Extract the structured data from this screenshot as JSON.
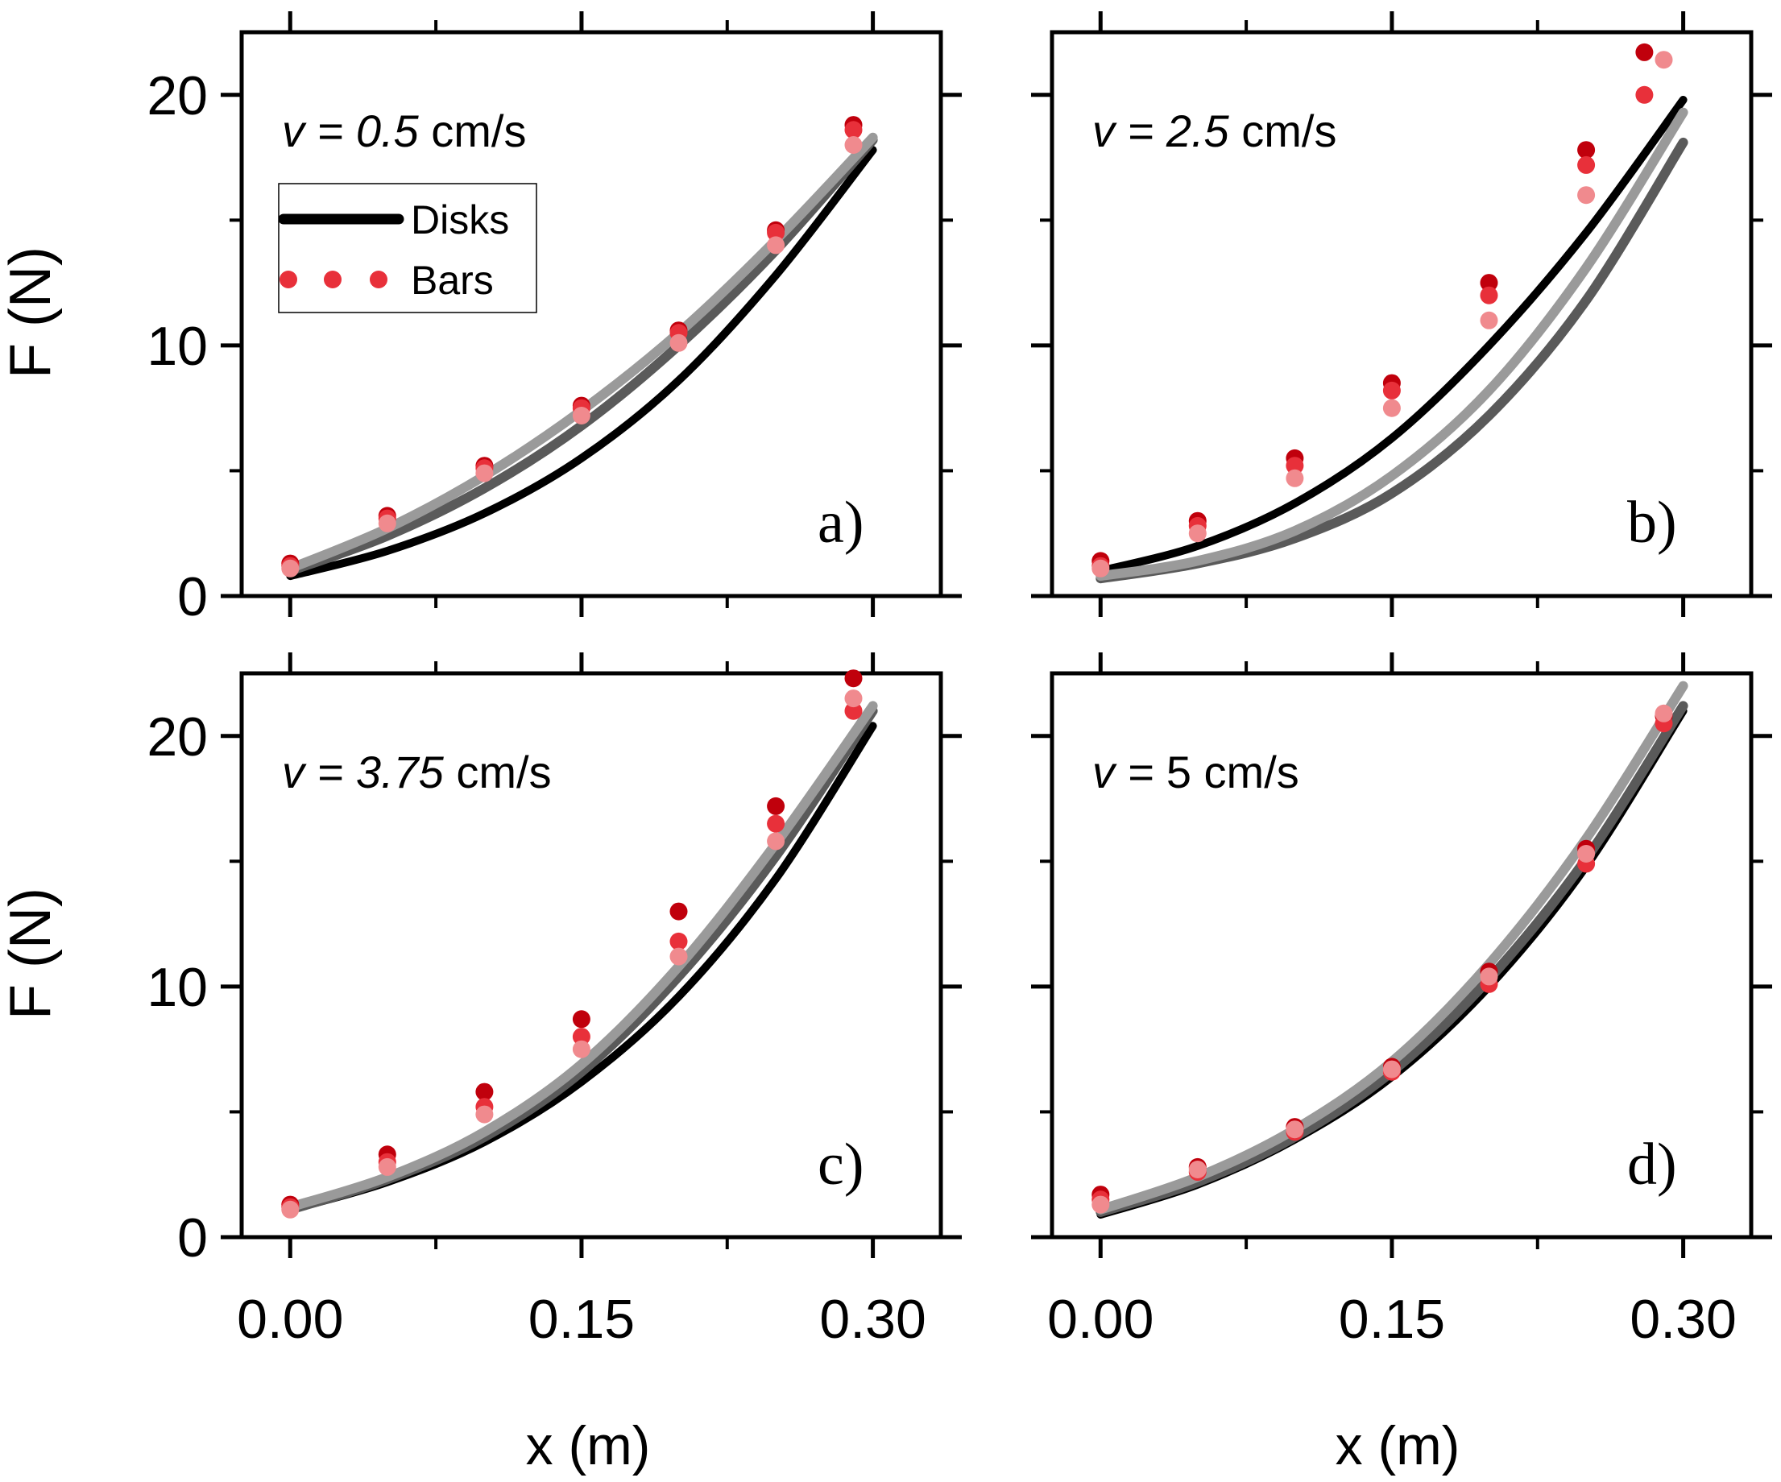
{
  "figure": {
    "colors": {
      "axis": "#000000",
      "disk_dark": "#000000",
      "disk_mid": "#5a5a5a",
      "disk_light": "#9a9a9a",
      "bar_dark": "#c0000c",
      "bar_mid": "#e8303a",
      "bar_light": "#f08a8e"
    }
  },
  "chart_data": [
    {
      "panel": "a)",
      "type": "scatter",
      "velocity": {
        "prefix": "v = ",
        "value": "0.5",
        "unit": " cm/s"
      },
      "xlabel": "x (m)",
      "ylabel": "F (N)",
      "xlim": [
        -0.025,
        0.335
      ],
      "ylim": [
        0,
        22.5
      ],
      "xticks": [
        "0.00",
        "0.15",
        "0.30"
      ],
      "yticks": [
        "0",
        "10",
        "20"
      ],
      "legend": {
        "position": "top-left",
        "entries": [
          {
            "label": "Disks",
            "style": "line"
          },
          {
            "label": "Bars",
            "style": "dots"
          }
        ]
      },
      "series": [
        {
          "name": "Disks 1",
          "kind": "line",
          "color": "#000000",
          "x": [
            0,
            0.05,
            0.1,
            0.15,
            0.2,
            0.25,
            0.3
          ],
          "y": [
            0.8,
            1.8,
            3.3,
            5.5,
            8.6,
            12.8,
            17.8
          ]
        },
        {
          "name": "Disks 2",
          "kind": "line",
          "color": "#5a5a5a",
          "x": [
            0,
            0.05,
            0.1,
            0.15,
            0.2,
            0.25,
            0.3
          ],
          "y": [
            1.0,
            2.4,
            4.3,
            6.8,
            10.0,
            13.8,
            18.2
          ]
        },
        {
          "name": "Disks 3",
          "kind": "line",
          "color": "#9a9a9a",
          "x": [
            0,
            0.05,
            0.1,
            0.15,
            0.2,
            0.25,
            0.3
          ],
          "y": [
            1.1,
            2.7,
            4.8,
            7.4,
            10.5,
            14.2,
            18.3
          ]
        },
        {
          "name": "Bars 1",
          "kind": "dots",
          "color": "#c0000c",
          "x": [
            0,
            0.05,
            0.1,
            0.15,
            0.2,
            0.25,
            0.29
          ],
          "y": [
            1.3,
            3.2,
            5.2,
            7.6,
            10.6,
            14.6,
            18.8
          ]
        },
        {
          "name": "Bars 2",
          "kind": "dots",
          "color": "#e8303a",
          "x": [
            0,
            0.05,
            0.1,
            0.15,
            0.2,
            0.25,
            0.29
          ],
          "y": [
            1.2,
            3.1,
            5.1,
            7.5,
            10.5,
            14.5,
            18.6
          ]
        },
        {
          "name": "Bars 3",
          "kind": "dots",
          "color": "#f08a8e",
          "x": [
            0,
            0.05,
            0.1,
            0.15,
            0.2,
            0.25,
            0.29
          ],
          "y": [
            1.1,
            2.9,
            4.9,
            7.2,
            10.1,
            14.0,
            18.0
          ]
        }
      ]
    },
    {
      "panel": "b)",
      "type": "scatter",
      "velocity": {
        "prefix": "v = ",
        "value": "2.5",
        "unit": " cm/s"
      },
      "xlabel": "x (m)",
      "ylabel": "F (N)",
      "xlim": [
        -0.025,
        0.335
      ],
      "ylim": [
        0,
        22.5
      ],
      "xticks": [
        "0.00",
        "0.15",
        "0.30"
      ],
      "yticks": [
        "0",
        "10",
        "20"
      ],
      "series": [
        {
          "name": "Disks 1",
          "kind": "line",
          "color": "#000000",
          "x": [
            0,
            0.05,
            0.1,
            0.15,
            0.2,
            0.25,
            0.3
          ],
          "y": [
            1.0,
            2.0,
            3.7,
            6.3,
            10.0,
            14.5,
            19.8
          ]
        },
        {
          "name": "Disks 2",
          "kind": "line",
          "color": "#5a5a5a",
          "x": [
            0,
            0.05,
            0.1,
            0.15,
            0.2,
            0.25,
            0.3
          ],
          "y": [
            0.7,
            1.3,
            2.3,
            4.1,
            7.2,
            11.8,
            18.1
          ]
        },
        {
          "name": "Disks 3",
          "kind": "line",
          "color": "#9a9a9a",
          "x": [
            0,
            0.05,
            0.1,
            0.15,
            0.2,
            0.25,
            0.3
          ],
          "y": [
            0.8,
            1.4,
            2.6,
            4.8,
            8.2,
            13.1,
            19.3
          ]
        },
        {
          "name": "Bars 1",
          "kind": "dots",
          "color": "#c0000c",
          "x": [
            0,
            0.05,
            0.1,
            0.15,
            0.2,
            0.25,
            0.28
          ],
          "y": [
            1.4,
            3.0,
            5.5,
            8.5,
            12.5,
            17.8,
            21.7
          ]
        },
        {
          "name": "Bars 2",
          "kind": "dots",
          "color": "#e8303a",
          "x": [
            0,
            0.05,
            0.1,
            0.15,
            0.2,
            0.25,
            0.28
          ],
          "y": [
            1.2,
            2.8,
            5.2,
            8.2,
            12.0,
            17.2,
            20.0
          ]
        },
        {
          "name": "Bars 3",
          "kind": "dots",
          "color": "#f08a8e",
          "x": [
            0,
            0.05,
            0.1,
            0.15,
            0.2,
            0.25,
            0.29
          ],
          "y": [
            1.1,
            2.5,
            4.7,
            7.5,
            11.0,
            16.0,
            21.4
          ]
        }
      ]
    },
    {
      "panel": "c)",
      "type": "scatter",
      "velocity": {
        "prefix": "v = ",
        "value": "3.75",
        "unit": " cm/s"
      },
      "xlabel": "x (m)",
      "ylabel": "F (N)",
      "xlim": [
        -0.025,
        0.335
      ],
      "ylim": [
        0,
        22.5
      ],
      "xticks": [
        "0.00",
        "0.15",
        "0.30"
      ],
      "yticks": [
        "0",
        "10",
        "20"
      ],
      "series": [
        {
          "name": "Disks 1",
          "kind": "line",
          "color": "#000000",
          "x": [
            0,
            0.05,
            0.1,
            0.15,
            0.2,
            0.25,
            0.3
          ],
          "y": [
            1.1,
            2.2,
            3.8,
            6.2,
            9.6,
            14.3,
            20.4
          ]
        },
        {
          "name": "Disks 2",
          "kind": "line",
          "color": "#5a5a5a",
          "x": [
            0,
            0.05,
            0.1,
            0.15,
            0.2,
            0.25,
            0.3
          ],
          "y": [
            1.1,
            2.3,
            4.0,
            6.6,
            10.4,
            15.2,
            21.0
          ]
        },
        {
          "name": "Disks 3",
          "kind": "line",
          "color": "#9a9a9a",
          "x": [
            0,
            0.05,
            0.1,
            0.15,
            0.2,
            0.25,
            0.3
          ],
          "y": [
            1.2,
            2.4,
            4.2,
            6.9,
            10.8,
            15.7,
            21.2
          ]
        },
        {
          "name": "Bars 1",
          "kind": "dots",
          "color": "#c0000c",
          "x": [
            0,
            0.05,
            0.1,
            0.15,
            0.2,
            0.25,
            0.29
          ],
          "y": [
            1.3,
            3.3,
            5.8,
            8.7,
            13.0,
            17.2,
            22.3
          ]
        },
        {
          "name": "Bars 2",
          "kind": "dots",
          "color": "#e8303a",
          "x": [
            0,
            0.05,
            0.1,
            0.15,
            0.2,
            0.25,
            0.29
          ],
          "y": [
            1.2,
            3.0,
            5.2,
            8.0,
            11.8,
            16.5,
            21.0
          ]
        },
        {
          "name": "Bars 3",
          "kind": "dots",
          "color": "#f08a8e",
          "x": [
            0,
            0.05,
            0.1,
            0.15,
            0.2,
            0.25,
            0.29
          ],
          "y": [
            1.1,
            2.8,
            4.9,
            7.5,
            11.2,
            15.8,
            21.5
          ]
        }
      ]
    },
    {
      "panel": "d)",
      "type": "scatter",
      "velocity": {
        "prefix": "v = ",
        "value": "5",
        "unit": " cm/s"
      },
      "xlabel": "x (m)",
      "ylabel": "F (N)",
      "xlim": [
        -0.025,
        0.335
      ],
      "ylim": [
        0,
        22.5
      ],
      "xticks": [
        "0.00",
        "0.15",
        "0.30"
      ],
      "yticks": [
        "0",
        "10",
        "20"
      ],
      "series": [
        {
          "name": "Disks 1",
          "kind": "line",
          "color": "#000000",
          "x": [
            0,
            0.05,
            0.1,
            0.15,
            0.2,
            0.25,
            0.3
          ],
          "y": [
            0.9,
            2.1,
            3.9,
            6.4,
            10.0,
            14.8,
            21.0
          ]
        },
        {
          "name": "Disks 2",
          "kind": "line",
          "color": "#5a5a5a",
          "x": [
            0,
            0.05,
            0.1,
            0.15,
            0.2,
            0.25,
            0.3
          ],
          "y": [
            1.0,
            2.2,
            4.0,
            6.6,
            10.3,
            15.1,
            21.2
          ]
        },
        {
          "name": "Disks 3",
          "kind": "line",
          "color": "#9a9a9a",
          "x": [
            0,
            0.05,
            0.1,
            0.15,
            0.2,
            0.25,
            0.3
          ],
          "y": [
            1.1,
            2.4,
            4.3,
            7.0,
            10.9,
            15.9,
            22.0
          ]
        },
        {
          "name": "Bars 1",
          "kind": "dots",
          "color": "#c0000c",
          "x": [
            0,
            0.05,
            0.1,
            0.15,
            0.2,
            0.25,
            0.29
          ],
          "y": [
            1.7,
            2.8,
            4.4,
            6.8,
            10.6,
            15.5,
            20.8
          ]
        },
        {
          "name": "Bars 2",
          "kind": "dots",
          "color": "#e8303a",
          "x": [
            0,
            0.05,
            0.1,
            0.15,
            0.2,
            0.25,
            0.29
          ],
          "y": [
            1.5,
            2.6,
            4.2,
            6.6,
            10.1,
            14.9,
            20.5
          ]
        },
        {
          "name": "Bars 3",
          "kind": "dots",
          "color": "#f08a8e",
          "x": [
            0,
            0.05,
            0.1,
            0.15,
            0.2,
            0.25,
            0.29
          ],
          "y": [
            1.3,
            2.7,
            4.3,
            6.7,
            10.4,
            15.3,
            20.9
          ]
        }
      ]
    }
  ]
}
